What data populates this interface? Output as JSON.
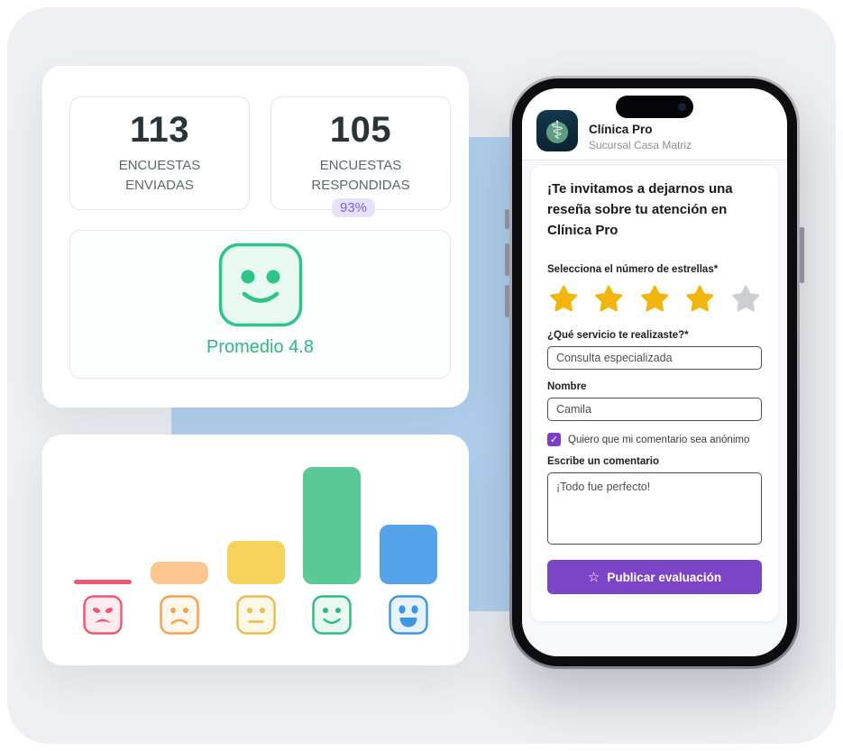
{
  "page": {
    "bg_color": "#ffffff",
    "panel_color": "#eef0f3",
    "accent_blue": "#b5d4f1"
  },
  "stats": {
    "sent": {
      "value": "113",
      "lines": [
        "ENCUESTAS",
        "ENVIADAS"
      ]
    },
    "responded": {
      "value": "105",
      "lines": [
        "ENCUESTAS",
        "RESPONDIDAS"
      ]
    },
    "response_rate": "93%",
    "average_label": "Promedio 4.8",
    "average_color": "#2eb87e"
  },
  "chart_data": {
    "type": "bar",
    "categories": [
      "muy malo",
      "malo",
      "regular",
      "bueno",
      "excelente"
    ],
    "values_percent": [
      4,
      19,
      37,
      100,
      51
    ],
    "title": "",
    "xlabel": "",
    "ylabel": "",
    "bars": [
      {
        "face": "angry",
        "pct": 4,
        "bar_color": "#ee5577",
        "face_stroke": "#f2546e",
        "face_fill": "#fdecef"
      },
      {
        "face": "frown",
        "pct": 19,
        "bar_color": "#fbc68f",
        "face_stroke": "#f5a050",
        "face_fill": "#fff6ec"
      },
      {
        "face": "neutral",
        "pct": 37,
        "bar_color": "#f7d25c",
        "face_stroke": "#e8bd4a",
        "face_fill": "#fdf7e7"
      },
      {
        "face": "smile",
        "pct": 100,
        "bar_color": "#5bc996",
        "face_stroke": "#2eba80",
        "face_fill": "#e9f9f1"
      },
      {
        "face": "grin",
        "pct": 51,
        "bar_color": "#55a3e8",
        "face_stroke": "#4095e2",
        "face_fill": "#e5f2fc"
      }
    ]
  },
  "phone": {
    "app_name": "Clínica Pro",
    "app_subtitle": "Sucursal Casa Matriz",
    "logo_icon": "caduceus",
    "form": {
      "title": "¡Te invitamos a dejarnos una reseña sobre tu atención en Clínica Pro",
      "stars_label": "Selecciona el número de estrellas*",
      "stars_filled": 4,
      "stars_total": 5,
      "star_color_filled": "#f2b50d",
      "star_color_empty": "#cbcfd3",
      "service_label": "¿Qué servicio te realizaste?*",
      "service_value": "Consulta especializada",
      "name_label": "Nombre",
      "name_value": "Camila",
      "anonymous_label": "Quiero que mi comentario sea anónimo",
      "anonymous_checked": true,
      "checkbox_color": "#7d3fc9",
      "comment_label": "Escribe un comentario",
      "comment_value": "¡Todo fue perfecto!",
      "submit_label": "Publicar evaluación",
      "submit_icon": "star-outline",
      "submit_color": "#7c45c8"
    }
  }
}
